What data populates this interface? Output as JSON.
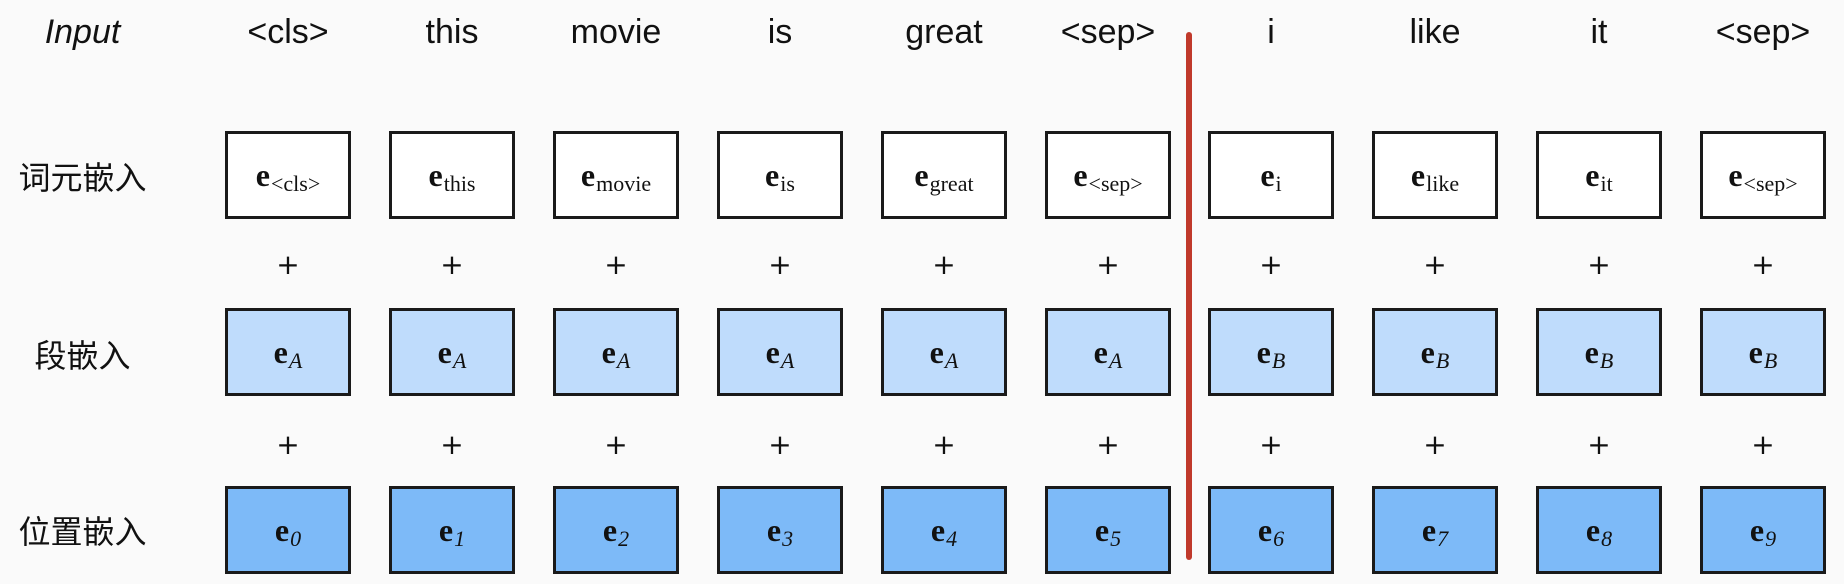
{
  "row_labels": {
    "input": "Input",
    "token": "词元嵌入",
    "segment": "段嵌入",
    "position": "位置嵌入"
  },
  "tokens": [
    "<cls>",
    "this",
    "movie",
    "is",
    "great",
    "<sep>",
    "i",
    "like",
    "it",
    "<sep>"
  ],
  "token_embeddings": [
    {
      "e": "e",
      "sub": "<cls>"
    },
    {
      "e": "e",
      "sub": "this"
    },
    {
      "e": "e",
      "sub": "movie"
    },
    {
      "e": "e",
      "sub": "is"
    },
    {
      "e": "e",
      "sub": "great"
    },
    {
      "e": "e",
      "sub": "<sep>"
    },
    {
      "e": "e",
      "sub": "i"
    },
    {
      "e": "e",
      "sub": "like"
    },
    {
      "e": "e",
      "sub": "it"
    },
    {
      "e": "e",
      "sub": "<sep>"
    }
  ],
  "segment_embeddings": [
    {
      "e": "e",
      "sub": "A"
    },
    {
      "e": "e",
      "sub": "A"
    },
    {
      "e": "e",
      "sub": "A"
    },
    {
      "e": "e",
      "sub": "A"
    },
    {
      "e": "e",
      "sub": "A"
    },
    {
      "e": "e",
      "sub": "A"
    },
    {
      "e": "e",
      "sub": "B"
    },
    {
      "e": "e",
      "sub": "B"
    },
    {
      "e": "e",
      "sub": "B"
    },
    {
      "e": "e",
      "sub": "B"
    }
  ],
  "position_embeddings": [
    {
      "e": "e",
      "sub": "0"
    },
    {
      "e": "e",
      "sub": "1"
    },
    {
      "e": "e",
      "sub": "2"
    },
    {
      "e": "e",
      "sub": "3"
    },
    {
      "e": "e",
      "sub": "4"
    },
    {
      "e": "e",
      "sub": "5"
    },
    {
      "e": "e",
      "sub": "6"
    },
    {
      "e": "e",
      "sub": "7"
    },
    {
      "e": "e",
      "sub": "8"
    },
    {
      "e": "e",
      "sub": "9"
    }
  ],
  "plus_sign": "+",
  "colors": {
    "token_fill": "#ffffff",
    "segment_fill": "#bfdcfc",
    "position_fill": "#7dbaf8",
    "box_border": "#1a1a1a",
    "divider": "#c0392b"
  }
}
